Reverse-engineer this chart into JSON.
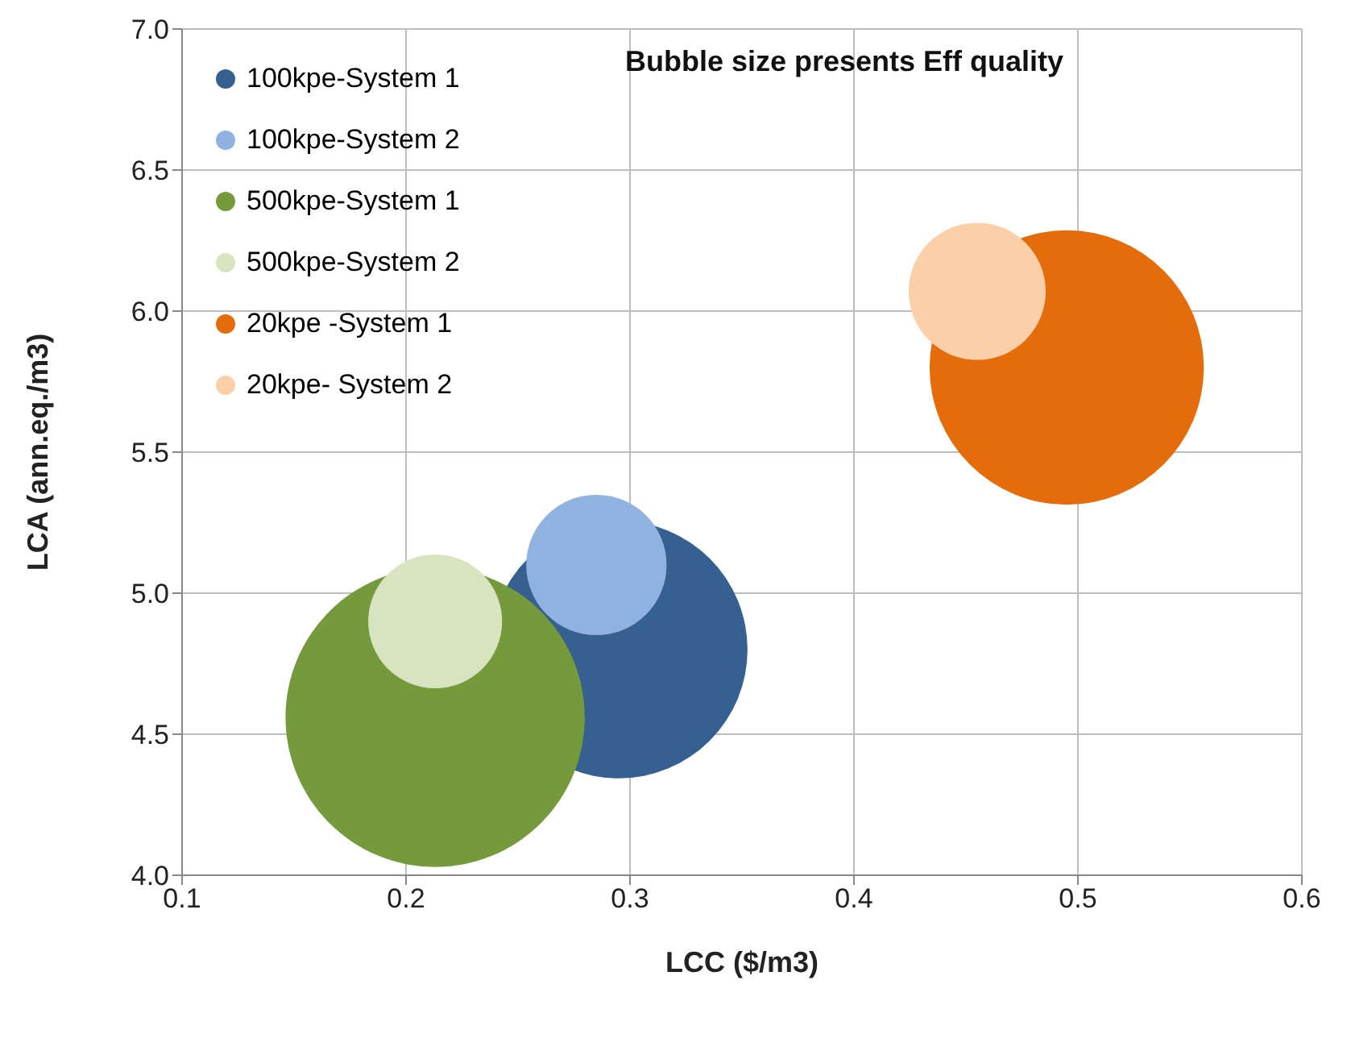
{
  "chart_data": {
    "type": "bubble",
    "xlabel": "LCC ($/m3)",
    "ylabel": "LCA (ann.eq./m3)",
    "annotations": [
      "Bubble size presents Eff quality"
    ],
    "xlim": [
      0.1,
      0.6
    ],
    "xticks": [
      {
        "value": 0.1,
        "label": "0.1"
      },
      {
        "value": 0.2,
        "label": "0.2"
      },
      {
        "value": 0.3,
        "label": "0.3"
      },
      {
        "value": 0.4,
        "label": "0.4"
      },
      {
        "value": 0.5,
        "label": "0.5"
      },
      {
        "value": 0.6,
        "label": "0.6"
      }
    ],
    "ylim": [
      4.0,
      7.0
    ],
    "yticks": [
      {
        "value": 4,
        "label": "4.0"
      },
      {
        "value": 4.5,
        "label": "4.5"
      },
      {
        "value": 5,
        "label": "5.0"
      },
      {
        "value": 5.5,
        "label": "5.5"
      },
      {
        "value": 6,
        "label": "6.0"
      },
      {
        "value": 6.5,
        "label": "6.5"
      },
      {
        "value": 7,
        "label": "7.0"
      }
    ],
    "grid": true,
    "legend": "top left",
    "series": [
      {
        "name": "100kpe-System 1",
        "color": "#36608f",
        "x": [
          0.295
        ],
        "values": [
          4.8
        ],
        "sizes": [
          0.74
        ]
      },
      {
        "name": "100kpe-System 2",
        "color": "#8fb2e0",
        "x": [
          0.285
        ],
        "values": [
          5.1
        ],
        "sizes": [
          0.22
        ]
      },
      {
        "name": "500kpe-System 1",
        "color": "#749a3c",
        "x": [
          0.213
        ],
        "values": [
          4.56
        ],
        "sizes": [
          1
        ]
      },
      {
        "name": "500kpe-System 2",
        "color": "#d8e4c0",
        "x": [
          0.213
        ],
        "values": [
          4.9
        ],
        "sizes": [
          0.2
        ]
      },
      {
        "name": "20kpe -System 1",
        "color": "#e46c0a",
        "x": [
          0.495
        ],
        "values": [
          5.8
        ],
        "sizes": [
          0.84
        ]
      },
      {
        "name": "20kpe- System 2",
        "color": "#fbcfa8",
        "x": [
          0.455
        ],
        "values": [
          6.07
        ],
        "sizes": [
          0.21
        ]
      }
    ]
  }
}
